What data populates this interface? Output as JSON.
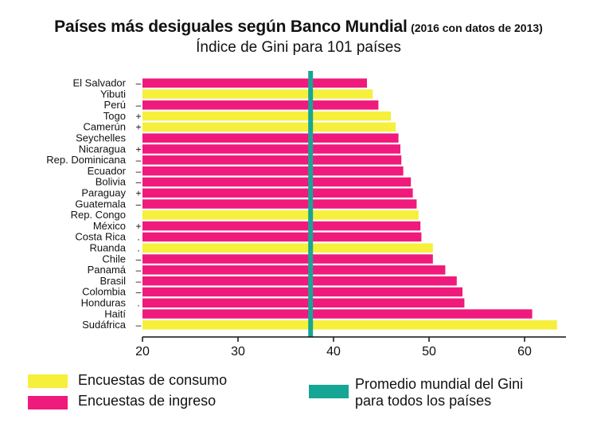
{
  "colors": {
    "consumo": "#f6ef3b",
    "ingreso": "#f01a7c",
    "promedio": "#17a695",
    "axis": "#111111"
  },
  "chart_data": {
    "type": "bar",
    "orientation": "horizontal",
    "title": "Países más desiguales según Banco Mundial",
    "title_suffix": "(2016 con datos de 2013)",
    "subtitle": "Índice de Gini para 101 países",
    "xlim": [
      20,
      63.5
    ],
    "xticks": [
      "20",
      "30",
      "40",
      "50",
      "60"
    ],
    "average_line": {
      "value": 37.6,
      "label": "Promedio mundial del Gini para todos los países"
    },
    "legend": {
      "consumo": "Encuestas de consumo",
      "ingreso": "Encuestas de ingreso",
      "promedio_line1": "Promedio mundial del Gini",
      "promedio_line2": "para todos los países"
    },
    "bars": [
      {
        "country": "El Salvador",
        "marker": "–",
        "value": 43.5,
        "type": "ingreso"
      },
      {
        "country": "Yibuti",
        "marker": "",
        "value": 44.1,
        "type": "consumo"
      },
      {
        "country": "Perú",
        "marker": "–",
        "value": 44.7,
        "type": "ingreso"
      },
      {
        "country": "Togo",
        "marker": "+",
        "value": 46.0,
        "type": "consumo"
      },
      {
        "country": "Camerún",
        "marker": "+",
        "value": 46.5,
        "type": "consumo"
      },
      {
        "country": "Seychelles",
        "marker": "",
        "value": 46.8,
        "type": "ingreso"
      },
      {
        "country": "Nicaragua",
        "marker": "+",
        "value": 47.0,
        "type": "ingreso"
      },
      {
        "country": "Rep. Dominicana",
        "marker": "–",
        "value": 47.1,
        "type": "ingreso"
      },
      {
        "country": "Ecuador",
        "marker": "–",
        "value": 47.3,
        "type": "ingreso"
      },
      {
        "country": "Bolivia",
        "marker": "–",
        "value": 48.1,
        "type": "ingreso"
      },
      {
        "country": "Paraguay",
        "marker": "+",
        "value": 48.3,
        "type": "ingreso"
      },
      {
        "country": "Guatemala",
        "marker": "–",
        "value": 48.7,
        "type": "ingreso"
      },
      {
        "country": "Rep. Congo",
        "marker": "",
        "value": 48.9,
        "type": "consumo"
      },
      {
        "country": "México",
        "marker": "+",
        "value": 49.1,
        "type": "ingreso"
      },
      {
        "country": "Costa Rica",
        "marker": ".",
        "value": 49.2,
        "type": "ingreso"
      },
      {
        "country": "Ruanda",
        "marker": ".",
        "value": 50.4,
        "type": "consumo"
      },
      {
        "country": "Chile",
        "marker": "–",
        "value": 50.4,
        "type": "ingreso"
      },
      {
        "country": "Panamá",
        "marker": "–",
        "value": 51.7,
        "type": "ingreso"
      },
      {
        "country": "Brasil",
        "marker": "–",
        "value": 52.9,
        "type": "ingreso"
      },
      {
        "country": "Colombia",
        "marker": "–",
        "value": 53.5,
        "type": "ingreso"
      },
      {
        "country": "Honduras",
        "marker": ".",
        "value": 53.7,
        "type": "ingreso"
      },
      {
        "country": "Haití",
        "marker": "",
        "value": 60.8,
        "type": "ingreso"
      },
      {
        "country": "Sudáfrica",
        "marker": "–",
        "value": 63.4,
        "type": "consumo"
      }
    ]
  }
}
